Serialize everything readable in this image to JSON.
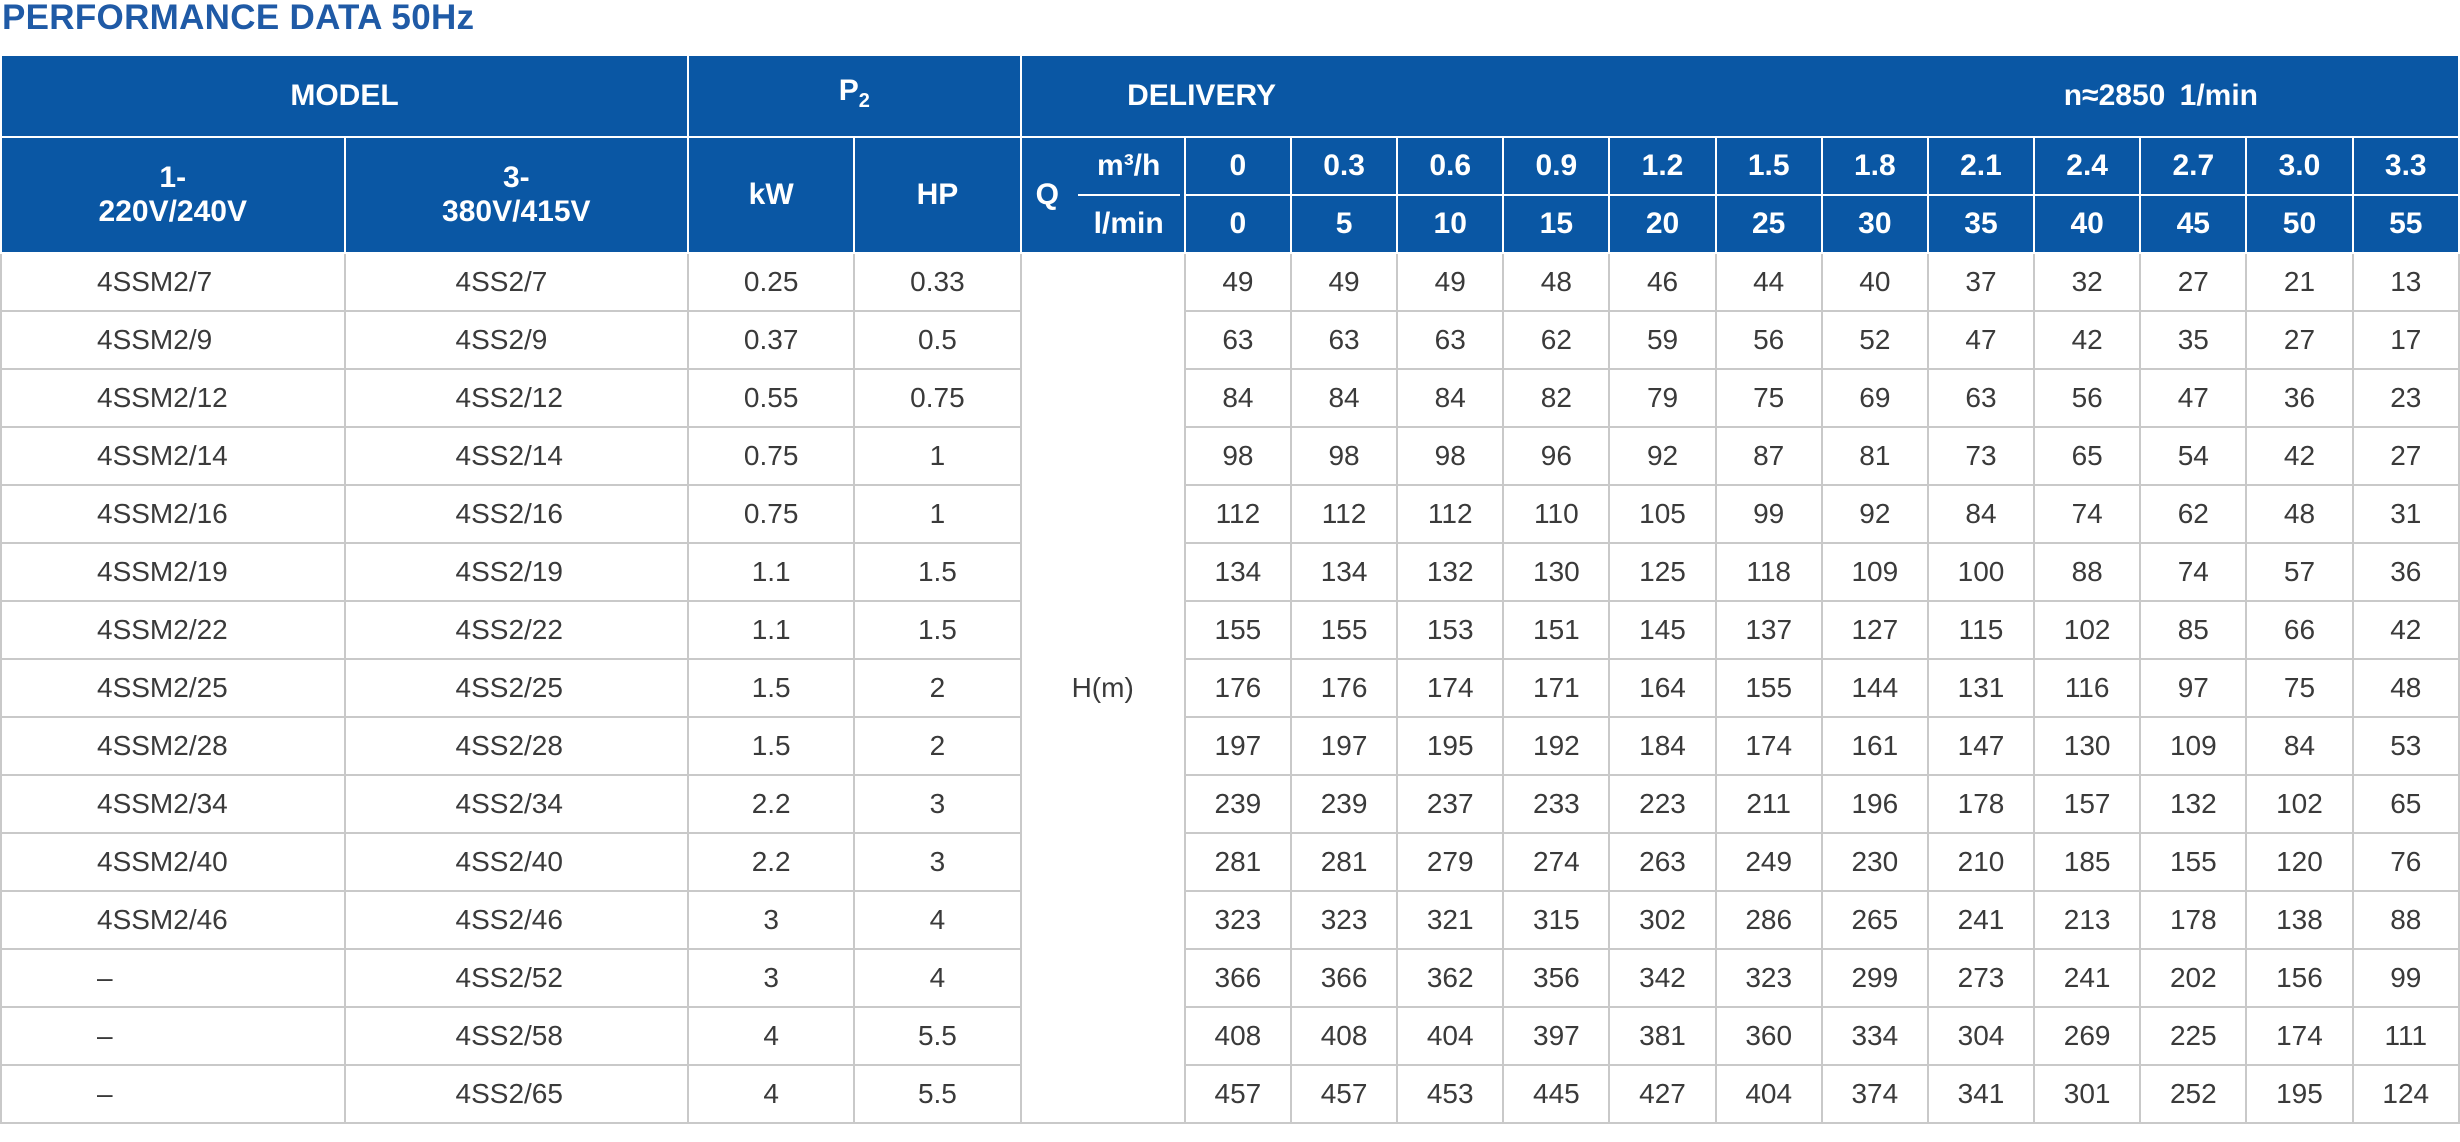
{
  "title": "PERFORMANCE DATA 50Hz",
  "header": {
    "model": "MODEL",
    "p2": "P",
    "p2_sub": "2",
    "delivery": "DELIVERY",
    "speed": "n≈2850  1/min",
    "single_phase": [
      "1-",
      "220V/240V"
    ],
    "three_phase": [
      "3-",
      "380V/415V"
    ],
    "kw": "kW",
    "hp": "HP",
    "q": "Q",
    "unit_m3h": "m³/h",
    "unit_lmin": "l/min",
    "flow_m3h": [
      "0",
      "0.3",
      "0.6",
      "0.9",
      "1.2",
      "1.5",
      "1.8",
      "2.1",
      "2.4",
      "2.7",
      "3.0",
      "3.3"
    ],
    "flow_lmin": [
      "0",
      "5",
      "10",
      "15",
      "20",
      "25",
      "30",
      "35",
      "40",
      "45",
      "50",
      "55"
    ]
  },
  "head_label": "H(m)",
  "rows": [
    {
      "m1": "4SSM2/7",
      "m3": "4SS2/7",
      "kw": "0.25",
      "hp": "0.33",
      "h": [
        "49",
        "49",
        "49",
        "48",
        "46",
        "44",
        "40",
        "37",
        "32",
        "27",
        "21",
        "13"
      ]
    },
    {
      "m1": "4SSM2/9",
      "m3": "4SS2/9",
      "kw": "0.37",
      "hp": "0.5",
      "h": [
        "63",
        "63",
        "63",
        "62",
        "59",
        "56",
        "52",
        "47",
        "42",
        "35",
        "27",
        "17"
      ]
    },
    {
      "m1": "4SSM2/12",
      "m3": "4SS2/12",
      "kw": "0.55",
      "hp": "0.75",
      "h": [
        "84",
        "84",
        "84",
        "82",
        "79",
        "75",
        "69",
        "63",
        "56",
        "47",
        "36",
        "23"
      ]
    },
    {
      "m1": "4SSM2/14",
      "m3": "4SS2/14",
      "kw": "0.75",
      "hp": "1",
      "h": [
        "98",
        "98",
        "98",
        "96",
        "92",
        "87",
        "81",
        "73",
        "65",
        "54",
        "42",
        "27"
      ]
    },
    {
      "m1": "4SSM2/16",
      "m3": "4SS2/16",
      "kw": "0.75",
      "hp": "1",
      "h": [
        "112",
        "112",
        "112",
        "110",
        "105",
        "99",
        "92",
        "84",
        "74",
        "62",
        "48",
        "31"
      ]
    },
    {
      "m1": "4SSM2/19",
      "m3": "4SS2/19",
      "kw": "1.1",
      "hp": "1.5",
      "h": [
        "134",
        "134",
        "132",
        "130",
        "125",
        "118",
        "109",
        "100",
        "88",
        "74",
        "57",
        "36"
      ]
    },
    {
      "m1": "4SSM2/22",
      "m3": "4SS2/22",
      "kw": "1.1",
      "hp": "1.5",
      "h": [
        "155",
        "155",
        "153",
        "151",
        "145",
        "137",
        "127",
        "115",
        "102",
        "85",
        "66",
        "42"
      ]
    },
    {
      "m1": "4SSM2/25",
      "m3": "4SS2/25",
      "kw": "1.5",
      "hp": "2",
      "h": [
        "176",
        "176",
        "174",
        "171",
        "164",
        "155",
        "144",
        "131",
        "116",
        "97",
        "75",
        "48"
      ]
    },
    {
      "m1": "4SSM2/28",
      "m3": "4SS2/28",
      "kw": "1.5",
      "hp": "2",
      "h": [
        "197",
        "197",
        "195",
        "192",
        "184",
        "174",
        "161",
        "147",
        "130",
        "109",
        "84",
        "53"
      ]
    },
    {
      "m1": "4SSM2/34",
      "m3": "4SS2/34",
      "kw": "2.2",
      "hp": "3",
      "h": [
        "239",
        "239",
        "237",
        "233",
        "223",
        "211",
        "196",
        "178",
        "157",
        "132",
        "102",
        "65"
      ]
    },
    {
      "m1": "4SSM2/40",
      "m3": "4SS2/40",
      "kw": "2.2",
      "hp": "3",
      "h": [
        "281",
        "281",
        "279",
        "274",
        "263",
        "249",
        "230",
        "210",
        "185",
        "155",
        "120",
        "76"
      ]
    },
    {
      "m1": "4SSM2/46",
      "m3": "4SS2/46",
      "kw": "3",
      "hp": "4",
      "h": [
        "323",
        "323",
        "321",
        "315",
        "302",
        "286",
        "265",
        "241",
        "213",
        "178",
        "138",
        "88"
      ]
    },
    {
      "m1": "–",
      "m3": "4SS2/52",
      "kw": "3",
      "hp": "4",
      "h": [
        "366",
        "366",
        "362",
        "356",
        "342",
        "323",
        "299",
        "273",
        "241",
        "202",
        "156",
        "99"
      ]
    },
    {
      "m1": "–",
      "m3": "4SS2/58",
      "kw": "4",
      "hp": "5.5",
      "h": [
        "408",
        "408",
        "404",
        "397",
        "381",
        "360",
        "334",
        "304",
        "269",
        "225",
        "174",
        "111"
      ]
    },
    {
      "m1": "–",
      "m3": "4SS2/65",
      "kw": "4",
      "hp": "5.5",
      "h": [
        "457",
        "457",
        "453",
        "445",
        "427",
        "404",
        "374",
        "341",
        "301",
        "252",
        "195",
        "124"
      ]
    }
  ]
}
